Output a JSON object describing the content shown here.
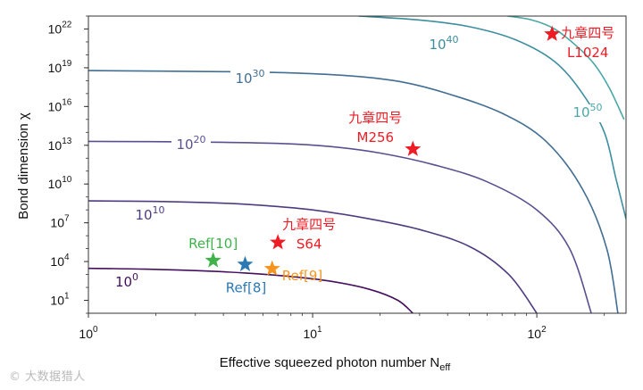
{
  "chart_data": {
    "type": "scatter",
    "xlabel": "Effective squeezed photon number N",
    "xlabel_sub": "eff",
    "ylabel": "Bond dimension χ",
    "xscale": "log",
    "yscale": "log",
    "xlim": [
      1,
      250
    ],
    "ylim": [
      1,
      1e+23
    ],
    "grid": false,
    "legend": "none",
    "xticks": [
      {
        "value": 1,
        "base": "10",
        "exp": "0"
      },
      {
        "value": 10,
        "base": "10",
        "exp": "1"
      },
      {
        "value": 100,
        "base": "10",
        "exp": "2"
      }
    ],
    "yticks": [
      {
        "value": 10.0,
        "base": "10",
        "exp": "1"
      },
      {
        "value": 10000.0,
        "base": "10",
        "exp": "4"
      },
      {
        "value": 10000000.0,
        "base": "10",
        "exp": "7"
      },
      {
        "value": 10000000000.0,
        "base": "10",
        "exp": "10"
      },
      {
        "value": 10000000000000.0,
        "base": "10",
        "exp": "13"
      },
      {
        "value": 1e+16,
        "base": "10",
        "exp": "16"
      },
      {
        "value": 1e+19,
        "base": "10",
        "exp": "19"
      },
      {
        "value": 1e+22,
        "base": "10",
        "exp": "22"
      }
    ],
    "contours": [
      {
        "level": "10^0",
        "base": "10",
        "exp": "0",
        "color": "#440f5e",
        "points": [
          [
            1,
            3000
          ],
          [
            1.8,
            2600
          ],
          [
            3,
            2000
          ],
          [
            5,
            1300
          ],
          [
            8,
            700
          ],
          [
            12,
            300
          ],
          [
            18,
            70
          ],
          [
            24,
            10
          ],
          [
            28,
            1
          ]
        ]
      },
      {
        "level": "10^10",
        "base": "10",
        "exp": "10",
        "color": "#4f3b7f",
        "points": [
          [
            1,
            500000000.0
          ],
          [
            2,
            450000000.0
          ],
          [
            4,
            330000000.0
          ],
          [
            6,
            220000000.0
          ],
          [
            10,
            100000000.0
          ],
          [
            18,
            20000000.0
          ],
          [
            30,
            3000000.0
          ],
          [
            50,
            150000.0
          ],
          [
            75,
            1000.0
          ],
          [
            100,
            1
          ]
        ]
      },
      {
        "level": "10^20",
        "base": "10",
        "exp": "20",
        "color": "#5a5090",
        "points": [
          [
            1,
            20000000000000.0
          ],
          [
            3,
            18000000000000.0
          ],
          [
            7,
            14000000000000.0
          ],
          [
            12,
            8000000000000.0
          ],
          [
            20,
            2500000000000.0
          ],
          [
            35,
            300000000000.0
          ],
          [
            60,
            15000000000.0
          ],
          [
            100,
            100000000.0
          ],
          [
            140,
            100000.0
          ],
          [
            175,
            1
          ]
        ]
      },
      {
        "level": "10^30",
        "base": "10",
        "exp": "30",
        "color": "#426e93",
        "points": [
          [
            1,
            6e+18
          ],
          [
            4,
            5e+18
          ],
          [
            8,
            4e+18
          ],
          [
            15,
            2.3e+18
          ],
          [
            25,
            8e+17
          ],
          [
            40,
            1e+17
          ],
          [
            70,
            3000000000000000.0
          ],
          [
            110,
            20000000000000.0
          ],
          [
            160,
            4000000000.0
          ],
          [
            205,
            100000.0
          ],
          [
            230,
            1
          ]
        ]
      },
      {
        "level": "10^40",
        "base": "10",
        "exp": "40",
        "color": "#3d8ea0",
        "points": [
          [
            16,
            1e+23
          ],
          [
            30,
            5e+22
          ],
          [
            50,
            1.5e+22
          ],
          [
            80,
            1.5e+21
          ],
          [
            120,
            3e+19
          ],
          [
            160,
            1e+17
          ],
          [
            200,
            100000000000000.0
          ],
          [
            225,
            30000000000.0
          ],
          [
            250,
            20000000.0
          ]
        ]
      },
      {
        "level": "10^50",
        "base": "10",
        "exp": "50",
        "color": "#4aa7a6",
        "points": [
          [
            74,
            1e+23
          ],
          [
            95,
            5e+22
          ],
          [
            120,
            1e+22
          ],
          [
            150,
            5e+20
          ],
          [
            180,
            2e+19
          ],
          [
            210,
            3e+17
          ],
          [
            245,
            1000000000000000.0
          ]
        ]
      }
    ],
    "points": [
      {
        "label": "Ref[10]",
        "x": 3.6,
        "y": 12000.0,
        "color": "#3fb24a",
        "label_color": "#3fb24a"
      },
      {
        "label": "Ref[8]",
        "x": 5.0,
        "y": 6000,
        "color": "#2b79b4",
        "label_color": "#2b79b4"
      },
      {
        "label": "Ref[9]",
        "x": 6.6,
        "y": 2800,
        "color": "#f5951f",
        "label_color": "#f5951f"
      },
      {
        "label": "S64",
        "x": 7.0,
        "y": 300000.0,
        "color": "#ee1c24",
        "label_color": "#ee1c24",
        "label_prefix": "九章四号"
      },
      {
        "label": "M256",
        "x": 28,
        "y": 5000000000000.0,
        "color": "#ee1c24",
        "label_color": "#ee1c24",
        "label_prefix": "九章四号"
      },
      {
        "label": "L1024",
        "x": 117,
        "y": 4e+21,
        "color": "#ee1c24",
        "label_color": "#ee1c24",
        "label_prefix": "九章四号"
      }
    ]
  },
  "watermark": "© 大数据猎人"
}
